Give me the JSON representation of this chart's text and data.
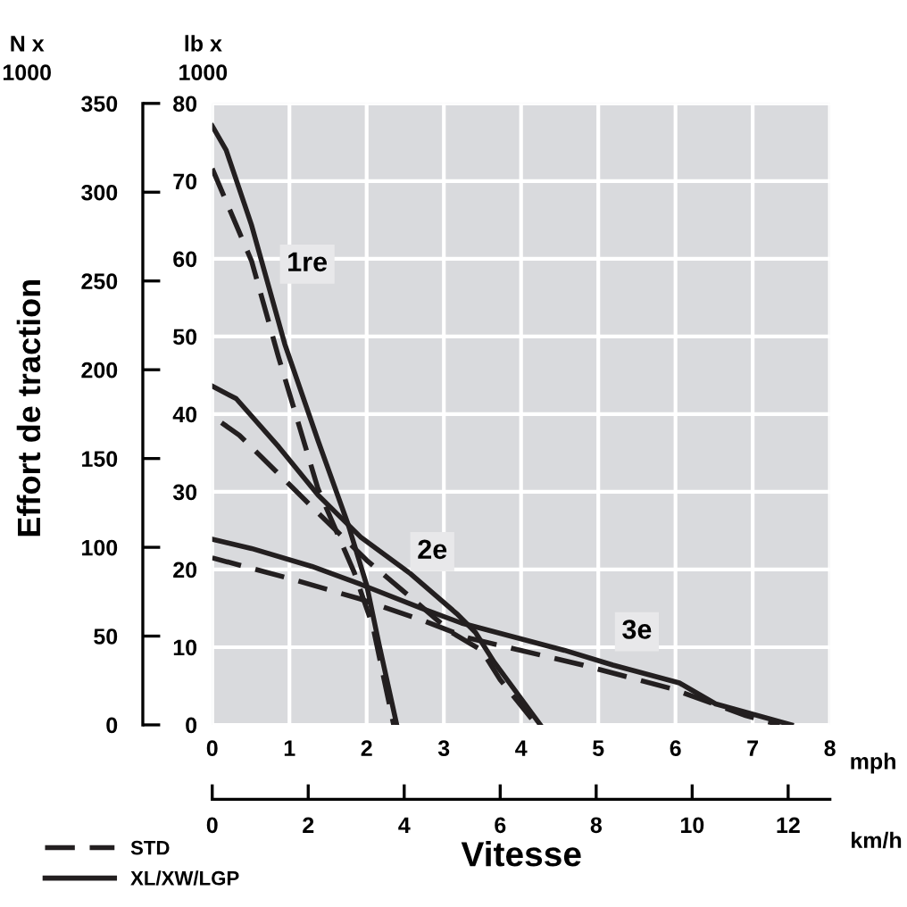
{
  "chart_data": {
    "type": "line",
    "xlabel": "mph",
    "x2label": "km/h",
    "ylabel": "lb x\n1000",
    "y2label": "N x\n1000",
    "xlim": [
      0,
      8
    ],
    "xticks": [
      0,
      1,
      2,
      3,
      4,
      5,
      6,
      7,
      8
    ],
    "ylim": [
      0,
      80
    ],
    "yticks": [
      0,
      10,
      20,
      30,
      40,
      50,
      60,
      70,
      80
    ],
    "x2lim": [
      0,
      12.87
    ],
    "x2ticks": [
      0,
      2,
      4,
      6,
      8,
      10,
      12
    ],
    "y2lim": [
      0,
      350
    ],
    "y2ticks": [
      0,
      50,
      100,
      150,
      200,
      250,
      300,
      350
    ],
    "grid": true,
    "legend": "bottom left",
    "annotations": [
      "Effort de traction",
      "Vitesse",
      {
        "text": "1re",
        "x": 1.23,
        "y": 59.3
      },
      {
        "text": "2e",
        "x": 2.85,
        "y": 22.3
      },
      {
        "text": "3e",
        "x": 5.5,
        "y": 12
      }
    ],
    "series": [
      {
        "name": "STD",
        "color": "#231f20",
        "line_style": "dashed",
        "x": [
          0,
          0.51,
          0.86,
          1.37,
          1.84,
          2.08,
          2.35
        ],
        "values": [
          71.6,
          59.7,
          47.3,
          30.4,
          19.6,
          12.7,
          0
        ]
      },
      {
        "name": "XL/XW/LGP",
        "color": "#231f20",
        "line_style": "solid",
        "x": [
          0,
          0.18,
          0.51,
          0.94,
          1.37,
          1.76,
          2.0,
          2.16,
          2.39
        ],
        "values": [
          77.1,
          74.0,
          64.3,
          49,
          36.6,
          25.8,
          18,
          10.4,
          0
        ]
      },
      {
        "color": "#231f20",
        "line_style": "dashed",
        "x": [
          0.12,
          0.35,
          0.82,
          1.37,
          2.0,
          2.55,
          3.1,
          3.49,
          3.73,
          4.2
        ],
        "values": [
          38.9,
          37.3,
          32.7,
          27.3,
          21.2,
          16.6,
          11.9,
          9.6,
          5.8,
          0
        ]
      },
      {
        "color": "#231f20",
        "line_style": "solid",
        "x": [
          0,
          0.31,
          0.86,
          1.37,
          1.92,
          2.55,
          3.18,
          3.41,
          3.65,
          4.25
        ],
        "values": [
          43.6,
          42,
          35.8,
          29.6,
          24.2,
          19.6,
          14.2,
          11.9,
          8.1,
          0
        ]
      },
      {
        "color": "#231f20",
        "line_style": "dashed",
        "x": [
          0,
          0.98,
          1.92,
          2.71,
          3.31,
          4.8,
          5.97,
          6.91,
          7.35
        ],
        "values": [
          21.5,
          18.9,
          16.2,
          13.5,
          11.2,
          7.7,
          4.6,
          1.2,
          0
        ]
      },
      {
        "color": "#231f20",
        "line_style": "solid",
        "x": [
          0,
          0.51,
          1.29,
          1.92,
          2.71,
          3.23,
          4.56,
          5.19,
          6.05,
          6.52,
          7.5
        ],
        "values": [
          23.9,
          22.7,
          20.4,
          18.1,
          15,
          13.1,
          9.6,
          7.7,
          5.4,
          2.7,
          0
        ]
      }
    ]
  }
}
